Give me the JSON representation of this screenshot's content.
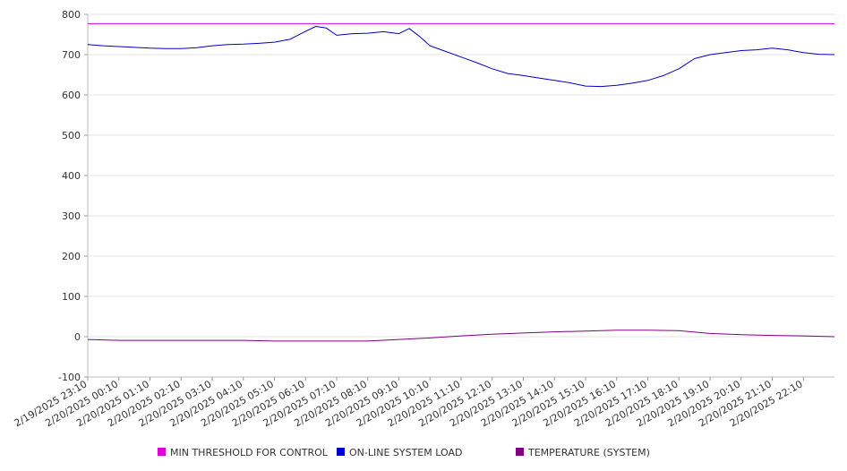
{
  "chart_data": {
    "type": "line",
    "title": "",
    "xlabel": "",
    "ylabel": "",
    "ylim": [
      -100,
      800
    ],
    "yticks": [
      800,
      700,
      600,
      500,
      400,
      300,
      200,
      100,
      0,
      -100
    ],
    "xlim": [
      "2/19/2025 23:10",
      "2/20/2025 23:10"
    ],
    "xticks": [
      "2/19/2025 23:10",
      "2/20/2025 00:10",
      "2/20/2025 01:10",
      "2/20/2025 02:10",
      "2/20/2025 03:10",
      "2/20/2025 04:10",
      "2/20/2025 05:10",
      "2/20/2025 06:10",
      "2/20/2025 07:10",
      "2/20/2025 08:10",
      "2/20/2025 09:10",
      "2/20/2025 10:10",
      "2/20/2025 11:10",
      "2/20/2025 12:10",
      "2/20/2025 13:10",
      "2/20/2025 14:10",
      "2/20/2025 15:10",
      "2/20/2025 16:10",
      "2/20/2025 17:10",
      "2/20/2025 18:10",
      "2/20/2025 19:10",
      "2/20/2025 20:10",
      "2/20/2025 21:10",
      "2/20/2025 22:10"
    ],
    "grid": true,
    "legend_position": "bottom",
    "series": [
      {
        "name": "MIN THRESHOLD FOR CONTROL",
        "color": "#dd00dd",
        "x": [
          "2/19/2025 23:10",
          "2/20/2025 23:10"
        ],
        "values": [
          777,
          777
        ]
      },
      {
        "name": "ON-LINE SYSTEM LOAD",
        "color": "#0000cc",
        "x": [
          "2/19/2025 23:10",
          "2/19/2025 23:40",
          "2/20/2025 00:10",
          "2/20/2025 00:40",
          "2/20/2025 01:10",
          "2/20/2025 01:40",
          "2/20/2025 02:10",
          "2/20/2025 02:40",
          "2/20/2025 03:10",
          "2/20/2025 03:40",
          "2/20/2025 04:10",
          "2/20/2025 04:40",
          "2/20/2025 05:10",
          "2/20/2025 05:40",
          "2/20/2025 06:10",
          "2/20/2025 06:30",
          "2/20/2025 06:50",
          "2/20/2025 07:10",
          "2/20/2025 07:40",
          "2/20/2025 08:10",
          "2/20/2025 08:40",
          "2/20/2025 09:10",
          "2/20/2025 09:30",
          "2/20/2025 09:50",
          "2/20/2025 10:10",
          "2/20/2025 10:40",
          "2/20/2025 11:10",
          "2/20/2025 11:40",
          "2/20/2025 12:10",
          "2/20/2025 12:40",
          "2/20/2025 13:10",
          "2/20/2025 13:40",
          "2/20/2025 14:10",
          "2/20/2025 14:40",
          "2/20/2025 15:10",
          "2/20/2025 15:40",
          "2/20/2025 16:10",
          "2/20/2025 16:40",
          "2/20/2025 17:10",
          "2/20/2025 17:40",
          "2/20/2025 18:10",
          "2/20/2025 18:40",
          "2/20/2025 19:10",
          "2/20/2025 19:40",
          "2/20/2025 20:10",
          "2/20/2025 20:40",
          "2/20/2025 21:10",
          "2/20/2025 21:40",
          "2/20/2025 22:10",
          "2/20/2025 22:40",
          "2/20/2025 23:10"
        ],
        "values": [
          725,
          722,
          720,
          718,
          716,
          715,
          715,
          717,
          722,
          725,
          726,
          728,
          731,
          738,
          758,
          770,
          766,
          748,
          752,
          753,
          757,
          752,
          765,
          745,
          722,
          708,
          694,
          680,
          665,
          653,
          648,
          642,
          636,
          630,
          622,
          621,
          624,
          629,
          636,
          648,
          665,
          690,
          700,
          705,
          710,
          712,
          716,
          712,
          705,
          701,
          700
        ]
      },
      {
        "name": "TEMPERATURE (SYSTEM)",
        "color": "#800080",
        "x": [
          "2/19/2025 23:10",
          "2/20/2025 00:10",
          "2/20/2025 01:10",
          "2/20/2025 02:10",
          "2/20/2025 03:10",
          "2/20/2025 04:10",
          "2/20/2025 05:10",
          "2/20/2025 06:10",
          "2/20/2025 07:10",
          "2/20/2025 08:10",
          "2/20/2025 09:10",
          "2/20/2025 10:10",
          "2/20/2025 11:10",
          "2/20/2025 12:10",
          "2/20/2025 13:10",
          "2/20/2025 14:10",
          "2/20/2025 15:10",
          "2/20/2025 16:10",
          "2/20/2025 17:10",
          "2/20/2025 18:10",
          "2/20/2025 19:10",
          "2/20/2025 20:10",
          "2/20/2025 21:10",
          "2/20/2025 22:10",
          "2/20/2025 23:10"
        ],
        "values": [
          -7,
          -9,
          -9,
          -9,
          -9,
          -9,
          -11,
          -11,
          -11,
          -11,
          -7,
          -3,
          2,
          6,
          9,
          12,
          14,
          16,
          16,
          15,
          8,
          5,
          3,
          2,
          0
        ]
      }
    ]
  }
}
